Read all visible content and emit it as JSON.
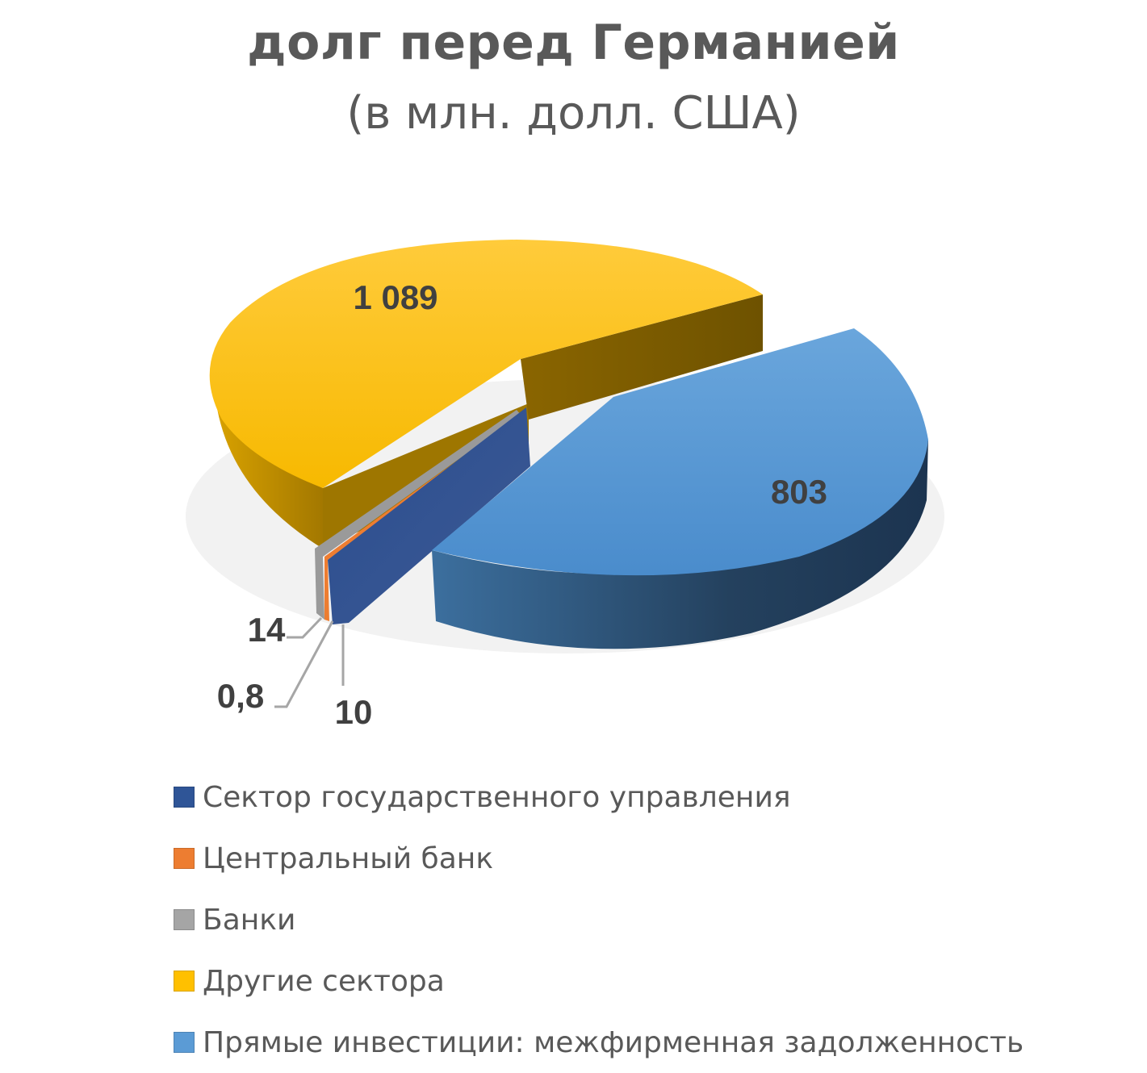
{
  "chart_data": {
    "type": "pie",
    "title": "долг перед Германией",
    "subtitle": "(в млн. долл. США)",
    "legend_position": "bottom",
    "slices": [
      {
        "name": "Сектор государственного управления",
        "value": 10,
        "label": "10",
        "color": "#2f5597"
      },
      {
        "name": "Центральный банк",
        "value": 0.8,
        "label": "0,8",
        "color": "#ed7d31"
      },
      {
        "name": "Банки",
        "value": 14,
        "label": "14",
        "color": "#a5a5a5"
      },
      {
        "name": "Другие сектора",
        "value": 1089,
        "label": "1 089",
        "color": "#ffc000"
      },
      {
        "name": "Прямые инвестиции: межфирменная задолженность",
        "value": 803,
        "label": "803",
        "color": "#5b9bd5"
      }
    ]
  }
}
